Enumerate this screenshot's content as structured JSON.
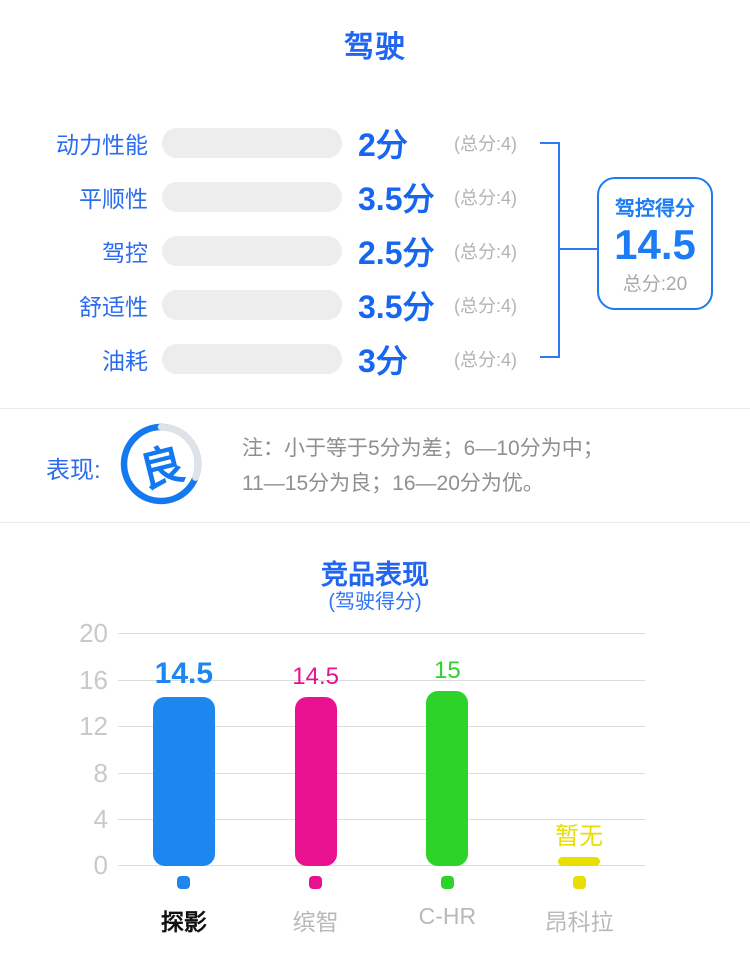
{
  "section_title": "驾驶",
  "scores": {
    "rows": [
      {
        "label": "动力性能",
        "score": "2分",
        "value": 2,
        "total": 4,
        "total_label": "(总分:4)"
      },
      {
        "label": "平顺性",
        "score": "3.5分",
        "value": 3.5,
        "total": 4,
        "total_label": "(总分:4)"
      },
      {
        "label": "驾控",
        "score": "2.5分",
        "value": 2.5,
        "total": 4,
        "total_label": "(总分:4)"
      },
      {
        "label": "舒适性",
        "score": "3.5分",
        "value": 3.5,
        "total": 4,
        "total_label": "(总分:4)"
      },
      {
        "label": "油耗",
        "score": "3分",
        "value": 3,
        "total": 4,
        "total_label": "(总分:4)"
      }
    ],
    "summary": {
      "title": "驾控得分",
      "score": "14.5",
      "total_label": "总分:20"
    }
  },
  "performance": {
    "label": "表现:",
    "grade": "良",
    "note_line1": "注：小于等于5分为差；6—10分为中；",
    "note_line2": "11—15分为良；16—20分为优。"
  },
  "chart_data": {
    "type": "bar",
    "title": "竞品表现",
    "subtitle": "(驾驶得分)",
    "categories": [
      "探影",
      "缤智",
      "C-HR",
      "昂科拉"
    ],
    "values": [
      14.5,
      14.5,
      15,
      null
    ],
    "bar_labels": [
      "14.5",
      "14.5",
      "15",
      "暂无"
    ],
    "colors": [
      "#1e87ef",
      "#ea1191",
      "#2ed32a",
      "#e6df00"
    ],
    "highlight_index": 0,
    "ylim": [
      0,
      20
    ],
    "yticks": [
      20,
      16,
      12,
      8,
      4,
      0
    ],
    "grid": true,
    "legend_position": "bottom",
    "xlabel": "",
    "ylabel": ""
  },
  "colors": {
    "accent_blue": "#2166f0",
    "bar_gradient_start": "#1843e6",
    "bar_gradient_end": "#0fa9f7",
    "bar_track": "#ededee",
    "muted_gray": "#b3b3b3",
    "note_gray": "#8f8f8f",
    "ring_blue": "#1478f0",
    "ring_gray": "#dfe3e8"
  }
}
